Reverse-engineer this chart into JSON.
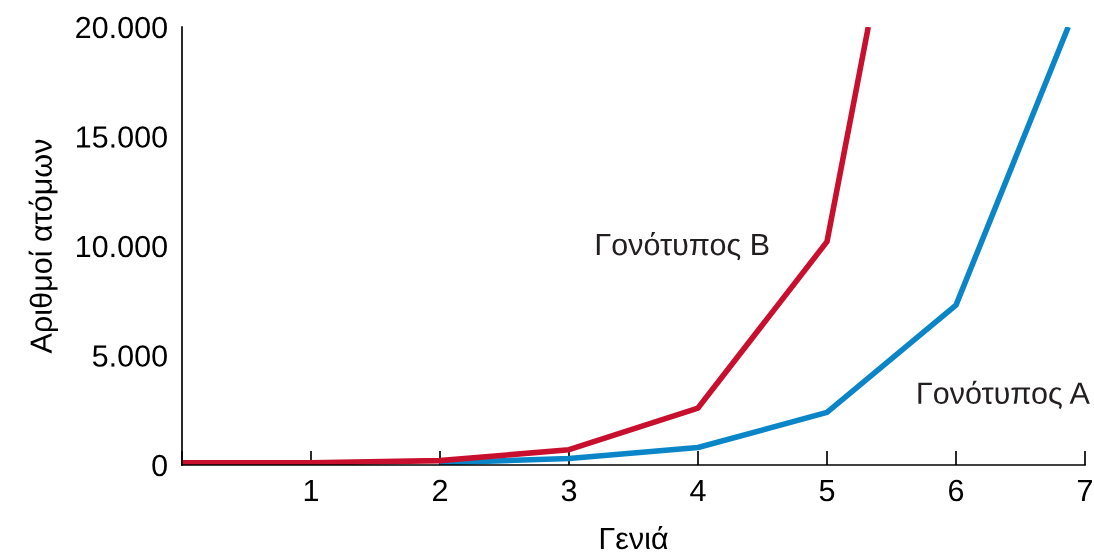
{
  "chart_data": {
    "type": "line",
    "xlabel": "Γενιά",
    "ylabel": "Αριθμοί ατόμων",
    "xlim": [
      0,
      7
    ],
    "xticks": [
      {
        "value": 0,
        "label": null
      },
      1,
      2,
      3,
      4,
      5,
      6,
      7
    ],
    "ylim": [
      0,
      20000
    ],
    "yticks": [
      {
        "value": 0,
        "label": "0"
      },
      {
        "value": 5000,
        "label": "5.000"
      },
      {
        "value": 10000,
        "label": "10.000"
      },
      {
        "value": 15000,
        "label": "15.000"
      },
      {
        "value": 20000,
        "label": "20.000"
      }
    ],
    "series": [
      {
        "name": "Γονότυπος A",
        "color": "#0a86c8",
        "x": [
          2,
          3,
          4,
          5,
          6,
          6.87
        ],
        "values": [
          100,
          300,
          800,
          2400,
          7300,
          20000
        ]
      },
      {
        "name": "Γονότυπος B",
        "color": "#c8102e",
        "x": [
          0,
          1,
          2,
          3,
          4,
          5,
          5.32
        ],
        "values": [
          100,
          100,
          200,
          700,
          2600,
          10200,
          20000
        ]
      }
    ],
    "grid": false,
    "legend": false,
    "marker": "none",
    "line_style": "solid"
  }
}
